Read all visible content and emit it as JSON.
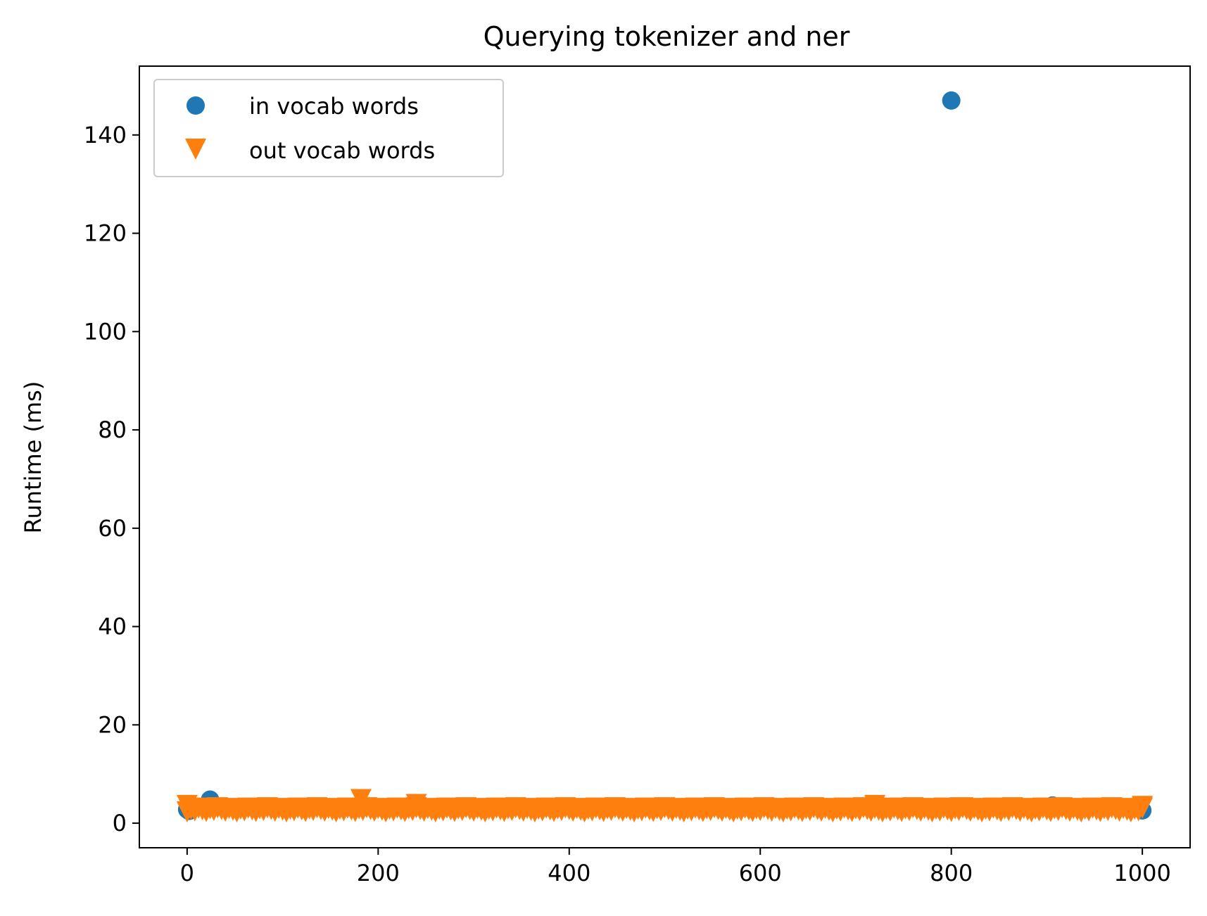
{
  "chart_data": {
    "type": "scatter",
    "title": "Querying tokenizer and ner",
    "xlabel": "",
    "ylabel": "Runtime (ms)",
    "xlim": [
      -50,
      1050
    ],
    "ylim": [
      -5,
      154
    ],
    "xticks": [
      0,
      200,
      400,
      600,
      800,
      1000
    ],
    "yticks": [
      0,
      20,
      40,
      60,
      80,
      100,
      120,
      140
    ],
    "grid": false,
    "legend": "top-left",
    "series": [
      {
        "name": "in vocab words",
        "marker": "circle",
        "color": "#1f77b4",
        "points": [
          [
            0,
            2.8
          ],
          [
            2,
            2.5
          ],
          [
            24,
            4.8
          ],
          [
            260,
            3.2
          ],
          [
            484,
            3.3
          ],
          [
            800,
            147
          ],
          [
            800,
            3.4
          ],
          [
            906,
            3.6
          ],
          [
            1000,
            2.6
          ]
        ]
      },
      {
        "name": "out vocab words",
        "marker": "triangle-down",
        "color": "#ff7f0e",
        "baseline": {
          "x_start": 0,
          "x_end": 1000,
          "step": 4,
          "y": 2.6
        },
        "points": [
          [
            182,
            4.8
          ],
          [
            0,
            3.6
          ],
          [
            1000,
            3.4
          ],
          [
            240,
            3.8
          ],
          [
            720,
            3.6
          ]
        ]
      }
    ]
  }
}
